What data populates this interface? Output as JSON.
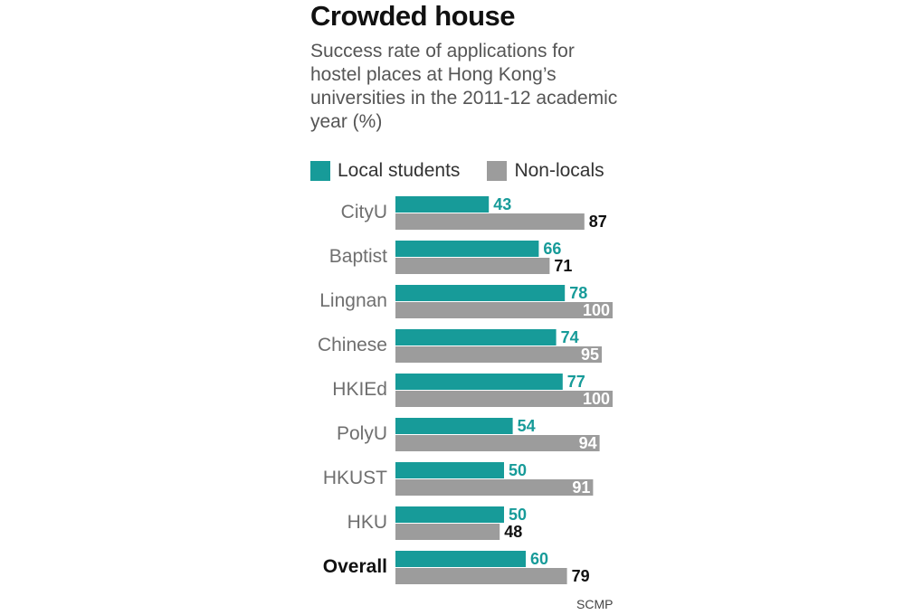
{
  "title": "Crowded house",
  "subtitle": "Success rate of applications for hostel places at Hong Kong’s universities in the 2011-12 academic year (%)",
  "source": "SCMP",
  "colors": {
    "local": "#179b99",
    "nonlocal": "#9c9c9c",
    "label_dark": "#111111",
    "label_light": "#ffffff",
    "category": "#6f6f6f"
  },
  "chart_data": {
    "type": "bar",
    "orientation": "horizontal",
    "title": "Crowded house",
    "subtitle": "Success rate of applications for hostel places at Hong Kong’s universities in the 2011-12 academic year (%)",
    "unit": "%",
    "xlim": [
      0,
      100
    ],
    "legend_position": "top",
    "categories": [
      "CityU",
      "Baptist",
      "Lingnan",
      "Chinese",
      "HKIEd",
      "PolyU",
      "HKUST",
      "HKU",
      "Overall"
    ],
    "series": [
      {
        "name": "Local students",
        "values": [
          43,
          66,
          78,
          74,
          77,
          54,
          50,
          50,
          60
        ]
      },
      {
        "name": "Non-locals",
        "values": [
          87,
          71,
          100,
          95,
          100,
          94,
          91,
          48,
          79
        ]
      }
    ]
  }
}
